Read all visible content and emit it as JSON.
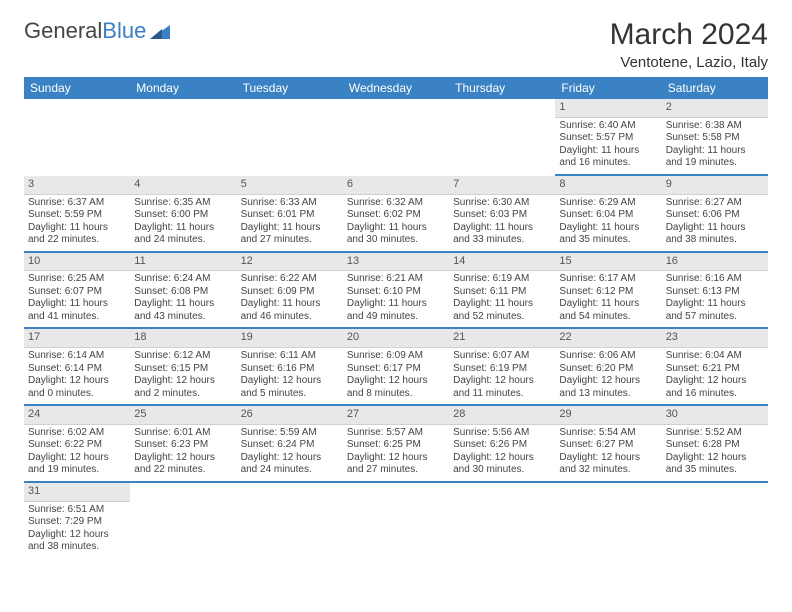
{
  "brand": {
    "part1": "General",
    "part2": "Blue"
  },
  "title": "March 2024",
  "location": "Ventotene, Lazio, Italy",
  "colors": {
    "header_bg": "#3b82c4",
    "header_fg": "#ffffff",
    "daynum_bg": "#e8e8e8",
    "row_rule": "#3b82c4",
    "text": "#444444",
    "background": "#ffffff"
  },
  "typography": {
    "month_fontsize": 30,
    "location_fontsize": 15,
    "weekday_fontsize": 12,
    "cell_fontsize": 10
  },
  "weekdays": [
    "Sunday",
    "Monday",
    "Tuesday",
    "Wednesday",
    "Thursday",
    "Friday",
    "Saturday"
  ],
  "weeks": [
    [
      null,
      null,
      null,
      null,
      null,
      {
        "d": "1",
        "sr": "6:40 AM",
        "ss": "5:57 PM",
        "dl": "11 hours and 16 minutes."
      },
      {
        "d": "2",
        "sr": "6:38 AM",
        "ss": "5:58 PM",
        "dl": "11 hours and 19 minutes."
      }
    ],
    [
      {
        "d": "3",
        "sr": "6:37 AM",
        "ss": "5:59 PM",
        "dl": "11 hours and 22 minutes."
      },
      {
        "d": "4",
        "sr": "6:35 AM",
        "ss": "6:00 PM",
        "dl": "11 hours and 24 minutes."
      },
      {
        "d": "5",
        "sr": "6:33 AM",
        "ss": "6:01 PM",
        "dl": "11 hours and 27 minutes."
      },
      {
        "d": "6",
        "sr": "6:32 AM",
        "ss": "6:02 PM",
        "dl": "11 hours and 30 minutes."
      },
      {
        "d": "7",
        "sr": "6:30 AM",
        "ss": "6:03 PM",
        "dl": "11 hours and 33 minutes."
      },
      {
        "d": "8",
        "sr": "6:29 AM",
        "ss": "6:04 PM",
        "dl": "11 hours and 35 minutes."
      },
      {
        "d": "9",
        "sr": "6:27 AM",
        "ss": "6:06 PM",
        "dl": "11 hours and 38 minutes."
      }
    ],
    [
      {
        "d": "10",
        "sr": "6:25 AM",
        "ss": "6:07 PM",
        "dl": "11 hours and 41 minutes."
      },
      {
        "d": "11",
        "sr": "6:24 AM",
        "ss": "6:08 PM",
        "dl": "11 hours and 43 minutes."
      },
      {
        "d": "12",
        "sr": "6:22 AM",
        "ss": "6:09 PM",
        "dl": "11 hours and 46 minutes."
      },
      {
        "d": "13",
        "sr": "6:21 AM",
        "ss": "6:10 PM",
        "dl": "11 hours and 49 minutes."
      },
      {
        "d": "14",
        "sr": "6:19 AM",
        "ss": "6:11 PM",
        "dl": "11 hours and 52 minutes."
      },
      {
        "d": "15",
        "sr": "6:17 AM",
        "ss": "6:12 PM",
        "dl": "11 hours and 54 minutes."
      },
      {
        "d": "16",
        "sr": "6:16 AM",
        "ss": "6:13 PM",
        "dl": "11 hours and 57 minutes."
      }
    ],
    [
      {
        "d": "17",
        "sr": "6:14 AM",
        "ss": "6:14 PM",
        "dl": "12 hours and 0 minutes."
      },
      {
        "d": "18",
        "sr": "6:12 AM",
        "ss": "6:15 PM",
        "dl": "12 hours and 2 minutes."
      },
      {
        "d": "19",
        "sr": "6:11 AM",
        "ss": "6:16 PM",
        "dl": "12 hours and 5 minutes."
      },
      {
        "d": "20",
        "sr": "6:09 AM",
        "ss": "6:17 PM",
        "dl": "12 hours and 8 minutes."
      },
      {
        "d": "21",
        "sr": "6:07 AM",
        "ss": "6:19 PM",
        "dl": "12 hours and 11 minutes."
      },
      {
        "d": "22",
        "sr": "6:06 AM",
        "ss": "6:20 PM",
        "dl": "12 hours and 13 minutes."
      },
      {
        "d": "23",
        "sr": "6:04 AM",
        "ss": "6:21 PM",
        "dl": "12 hours and 16 minutes."
      }
    ],
    [
      {
        "d": "24",
        "sr": "6:02 AM",
        "ss": "6:22 PM",
        "dl": "12 hours and 19 minutes."
      },
      {
        "d": "25",
        "sr": "6:01 AM",
        "ss": "6:23 PM",
        "dl": "12 hours and 22 minutes."
      },
      {
        "d": "26",
        "sr": "5:59 AM",
        "ss": "6:24 PM",
        "dl": "12 hours and 24 minutes."
      },
      {
        "d": "27",
        "sr": "5:57 AM",
        "ss": "6:25 PM",
        "dl": "12 hours and 27 minutes."
      },
      {
        "d": "28",
        "sr": "5:56 AM",
        "ss": "6:26 PM",
        "dl": "12 hours and 30 minutes."
      },
      {
        "d": "29",
        "sr": "5:54 AM",
        "ss": "6:27 PM",
        "dl": "12 hours and 32 minutes."
      },
      {
        "d": "30",
        "sr": "5:52 AM",
        "ss": "6:28 PM",
        "dl": "12 hours and 35 minutes."
      }
    ],
    [
      {
        "d": "31",
        "sr": "6:51 AM",
        "ss": "7:29 PM",
        "dl": "12 hours and 38 minutes."
      },
      null,
      null,
      null,
      null,
      null,
      null
    ]
  ],
  "labels": {
    "sunrise": "Sunrise:",
    "sunset": "Sunset:",
    "daylight": "Daylight:"
  }
}
